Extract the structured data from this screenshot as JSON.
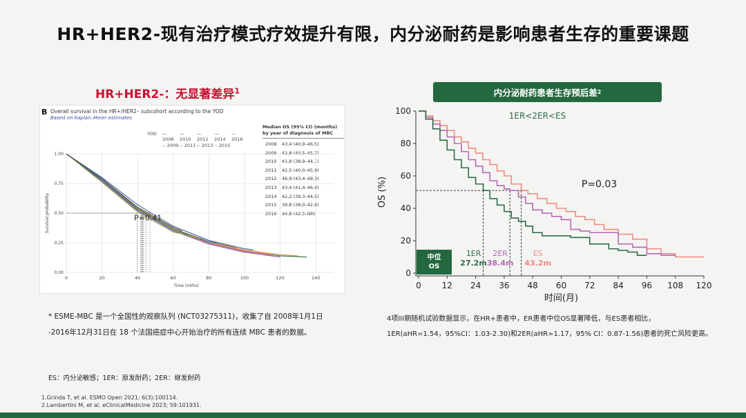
{
  "title": "HR+HER2-现有治疗模式疗效提升有限，内分泌耐药是影响患者生存的重要课题",
  "left": {
    "subtitle": "HR+HER2-：无显著差异",
    "subtitle_ref": "1",
    "panel_letter": "B",
    "chart_title": "Overall survival in the HR+/HER2– subcohort according to the YOD",
    "chart_subtitle": "Based on Kaplan–Meier estimates",
    "legend_label": "YOD",
    "legend_years": [
      "2008",
      "2010",
      "2012",
      "2014",
      "2016",
      "2009",
      "2011",
      "2013",
      "2015"
    ],
    "table_header_1": "Median OS (95% CI) (months)",
    "table_header_2": "by year of diagnosis of MBC",
    "table_rows": [
      {
        "year": "2008",
        "value": "43,4 (40,9–46,5)"
      },
      {
        "year": "2009",
        "value": "42,8 (40,5–45,7)"
      },
      {
        "year": "2010",
        "value": "41,8 (38,9–44,1)"
      },
      {
        "year": "2011",
        "value": "42,5 (40,0–45,9)"
      },
      {
        "year": "2012",
        "value": "46,9 (43,4–49,3)"
      },
      {
        "year": "2013",
        "value": "43,4 (41,4–46,4)"
      },
      {
        "year": "2014",
        "value": "42,2 (39,3–44,5)"
      },
      {
        "year": "2015",
        "value": "39,8 (38,0–42,6)"
      },
      {
        "year": "2016",
        "value": "44,8 (42,5–NR)"
      }
    ],
    "p_value": "P=0.41",
    "note_line1": "* ESME-MBC 是一个全国性的观察队列 (NCT03275311)，收集了自 2008年1月1日",
    "note_line2": "-2016年12月31日在 18 个法国癌症中心开始治疗的所有连续 MBC 患者的数据。"
  },
  "right": {
    "banner": "内分泌耐药患者生存预后差",
    "banner_ref": "2",
    "order_label": "1ER<2ER<ES",
    "p_value": "P=0.03",
    "median_box_line1": "中位",
    "median_box_line2": "OS",
    "note_line1": "4项III期随机试验数据显示，在HR+患者中，ER患者中位OS显著降低，与ES患者相比，",
    "note_line2": "1ER(aHR=1.54，95%CI：1.03-2.30)和2ER(aHR=1.17，95% CI：0.87-1.56)患者的死亡风险更高。"
  },
  "abbreviations": "ES：内分泌敏感；1ER：原发耐药；2ER：继发耐药",
  "references": [
    "1.Grinda T, et al. ESMO Open 2021; 6(3):100114.",
    "2.Lambertini M, et al. eClinicalMedicine 2023; 59:101931."
  ],
  "chart_data": [
    {
      "type": "line",
      "title": "Overall survival in the HR+/HER2– subcohort according to the YOD",
      "subtitle": "Based on Kaplan–Meier estimates",
      "xlabel": "Time (mths)",
      "ylabel": "Survival probability",
      "xlim": [
        0,
        150
      ],
      "ylim": [
        0,
        1
      ],
      "x_ticks": [
        0,
        20,
        40,
        60,
        80,
        100,
        120,
        140
      ],
      "y_ticks": [
        "0,00",
        "0,25",
        "0,50",
        "0,75",
        "1,00"
      ],
      "annotation": "P=0.41",
      "series": [
        {
          "name": "2008",
          "color": "#2c6e2c",
          "x": [
            0,
            20,
            40,
            60,
            80,
            100,
            120,
            135
          ],
          "y": [
            1,
            0.78,
            0.53,
            0.36,
            0.25,
            0.18,
            0.14,
            0.13
          ]
        },
        {
          "name": "2009",
          "color": "#d88b3a",
          "x": [
            0,
            20,
            40,
            60,
            80,
            100,
            120,
            130
          ],
          "y": [
            1,
            0.79,
            0.54,
            0.37,
            0.26,
            0.19,
            0.15,
            0.14
          ]
        },
        {
          "name": "2010",
          "color": "#7a4aa0",
          "x": [
            0,
            20,
            40,
            60,
            80,
            100,
            120
          ],
          "y": [
            1,
            0.77,
            0.52,
            0.35,
            0.24,
            0.17,
            0.13
          ]
        },
        {
          "name": "2011",
          "color": "#c04040",
          "x": [
            0,
            20,
            40,
            60,
            80,
            100,
            115
          ],
          "y": [
            1,
            0.78,
            0.53,
            0.36,
            0.25,
            0.18,
            0.15
          ]
        },
        {
          "name": "2012",
          "color": "#3b5ea8",
          "x": [
            0,
            20,
            40,
            60,
            80,
            100,
            105
          ],
          "y": [
            1,
            0.8,
            0.57,
            0.39,
            0.27,
            0.2,
            0.19
          ]
        },
        {
          "name": "2013",
          "color": "#8a6a2a",
          "x": [
            0,
            20,
            40,
            60,
            80,
            95
          ],
          "y": [
            1,
            0.79,
            0.54,
            0.37,
            0.26,
            0.21
          ]
        },
        {
          "name": "2014",
          "color": "#2a8a8a",
          "x": [
            0,
            20,
            40,
            60,
            80,
            85
          ],
          "y": [
            1,
            0.78,
            0.53,
            0.36,
            0.26,
            0.25
          ]
        },
        {
          "name": "2015",
          "color": "#a0a040",
          "x": [
            0,
            20,
            40,
            60,
            75
          ],
          "y": [
            1,
            0.76,
            0.51,
            0.34,
            0.29
          ]
        },
        {
          "name": "2016",
          "color": "#555555",
          "x": [
            0,
            20,
            40,
            60,
            65
          ],
          "y": [
            1,
            0.79,
            0.55,
            0.38,
            0.35
          ]
        }
      ],
      "medians_x": [
        43.4,
        42.8,
        41.8,
        42.5,
        46.9,
        43.4,
        42.2,
        39.8,
        44.8
      ]
    },
    {
      "type": "line",
      "title": "",
      "xlabel": "时间(月)",
      "ylabel": "OS (%)",
      "xlim": [
        0,
        120
      ],
      "ylim": [
        0,
        100
      ],
      "x_ticks": [
        0,
        12,
        24,
        36,
        48,
        60,
        72,
        84,
        96,
        108,
        120
      ],
      "y_ticks": [
        0,
        20,
        40,
        60,
        80,
        100
      ],
      "series": [
        {
          "name": "1ER",
          "color": "#2e6b48",
          "label": "1ER",
          "median_label": "27.2m",
          "median_x": 27.2,
          "x": [
            0,
            3,
            6,
            9,
            12,
            15,
            18,
            21,
            24,
            27.2,
            30,
            33,
            36,
            39,
            42,
            45,
            48,
            52,
            56,
            60,
            64,
            68,
            72,
            76,
            80,
            84,
            88,
            92,
            96
          ],
          "y": [
            100,
            95,
            89,
            82,
            76,
            70,
            65,
            59,
            55,
            51,
            46,
            42,
            38,
            34,
            32,
            29,
            25,
            23,
            23,
            23,
            22,
            22,
            18,
            18,
            15,
            14,
            13,
            11,
            11
          ]
        },
        {
          "name": "2ER",
          "color": "#b569b5",
          "label": "2ER",
          "median_label": "38.4m",
          "median_x": 38.4,
          "x": [
            0,
            3,
            6,
            9,
            12,
            15,
            18,
            21,
            24,
            27,
            30,
            33,
            36,
            38.4,
            42,
            45,
            48,
            52,
            56,
            60,
            64,
            68,
            72,
            78,
            84,
            90,
            96,
            102,
            108
          ],
          "y": [
            100,
            96,
            92,
            88,
            84,
            80,
            75,
            70,
            66,
            62,
            57,
            54,
            52,
            51,
            47,
            43,
            39,
            37,
            35,
            33,
            27,
            26,
            25,
            25,
            18,
            16,
            12,
            11,
            10
          ]
        },
        {
          "name": "ES",
          "color": "#f08a80",
          "label": "ES",
          "median_label": "43.2m",
          "median_x": 43.2,
          "x": [
            0,
            3,
            6,
            9,
            12,
            15,
            18,
            21,
            24,
            27,
            30,
            33,
            36,
            39,
            43.2,
            46,
            50,
            54,
            58,
            62,
            66,
            70,
            74,
            78,
            84,
            90,
            96,
            102,
            108,
            114,
            120
          ],
          "y": [
            100,
            97,
            94,
            91,
            88,
            84,
            81,
            77,
            74,
            70,
            67,
            63,
            60,
            55,
            51,
            49,
            46,
            43,
            40,
            38,
            35,
            33,
            30,
            27,
            24,
            21,
            15,
            12,
            10,
            10,
            10
          ]
        }
      ],
      "median_y": 51,
      "annotation_order": "1ER<2ER<ES",
      "annotation_p": "P=0.03"
    }
  ]
}
